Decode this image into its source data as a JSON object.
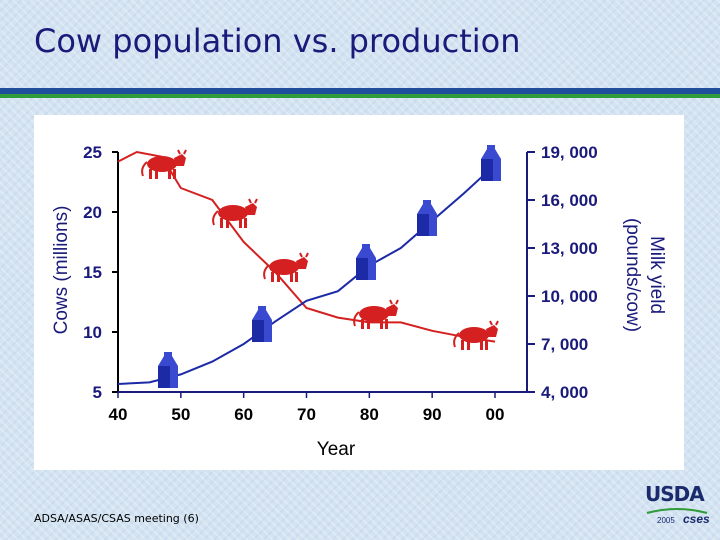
{
  "slide": {
    "title": "Cow population vs. production",
    "footer": "ADSA/ASAS/CSAS meeting (6)",
    "logo_text": "USDA",
    "logo_year": "2005",
    "logo_sub": "cses"
  },
  "chart_data": {
    "type": "line",
    "xlabel": "Year",
    "x_ticks": [
      "40",
      "50",
      "60",
      "70",
      "80",
      "90",
      "00"
    ],
    "x_tick_values": [
      1940,
      1950,
      1960,
      1970,
      1980,
      1990,
      2000
    ],
    "y_left": {
      "label": "Cows (millions)",
      "ticks": [
        "25",
        "20",
        "15",
        "10",
        "5"
      ],
      "tick_values": [
        25,
        20,
        15,
        10,
        5
      ],
      "range": [
        5,
        25
      ]
    },
    "y_right": {
      "label_line1": "Milk yield",
      "label_line2": "(pounds/cow)",
      "ticks": [
        "19, 000",
        "16, 000",
        "13, 000",
        "10, 000",
        "7, 000",
        "4, 000"
      ],
      "tick_values": [
        19000,
        16000,
        13000,
        10000,
        7000,
        4000
      ],
      "range": [
        4000,
        19000
      ]
    },
    "series": [
      {
        "axis": "left",
        "color": "#d42020",
        "icon": "cow-icon",
        "points": [
          [
            1940,
            24.2
          ],
          [
            1943,
            25.0
          ],
          [
            1947,
            24.6
          ],
          [
            1950,
            22.0
          ],
          [
            1955,
            21.0
          ],
          [
            1960,
            17.5
          ],
          [
            1965,
            15.0
          ],
          [
            1970,
            12.0
          ],
          [
            1975,
            11.2
          ],
          [
            1980,
            10.8
          ],
          [
            1985,
            10.8
          ],
          [
            1990,
            10.1
          ],
          [
            1995,
            9.6
          ],
          [
            2000,
            9.2
          ]
        ]
      },
      {
        "axis": "right",
        "color": "#1c2aa6",
        "icon": "milk-carton-icon",
        "points": [
          [
            1940,
            4500
          ],
          [
            1945,
            4600
          ],
          [
            1950,
            5100
          ],
          [
            1955,
            5900
          ],
          [
            1960,
            7000
          ],
          [
            1965,
            8400
          ],
          [
            1970,
            9700
          ],
          [
            1975,
            10300
          ],
          [
            1980,
            11900
          ],
          [
            1985,
            13000
          ],
          [
            1990,
            14700
          ],
          [
            1995,
            16400
          ],
          [
            2000,
            18200
          ]
        ]
      }
    ],
    "grid": false
  }
}
